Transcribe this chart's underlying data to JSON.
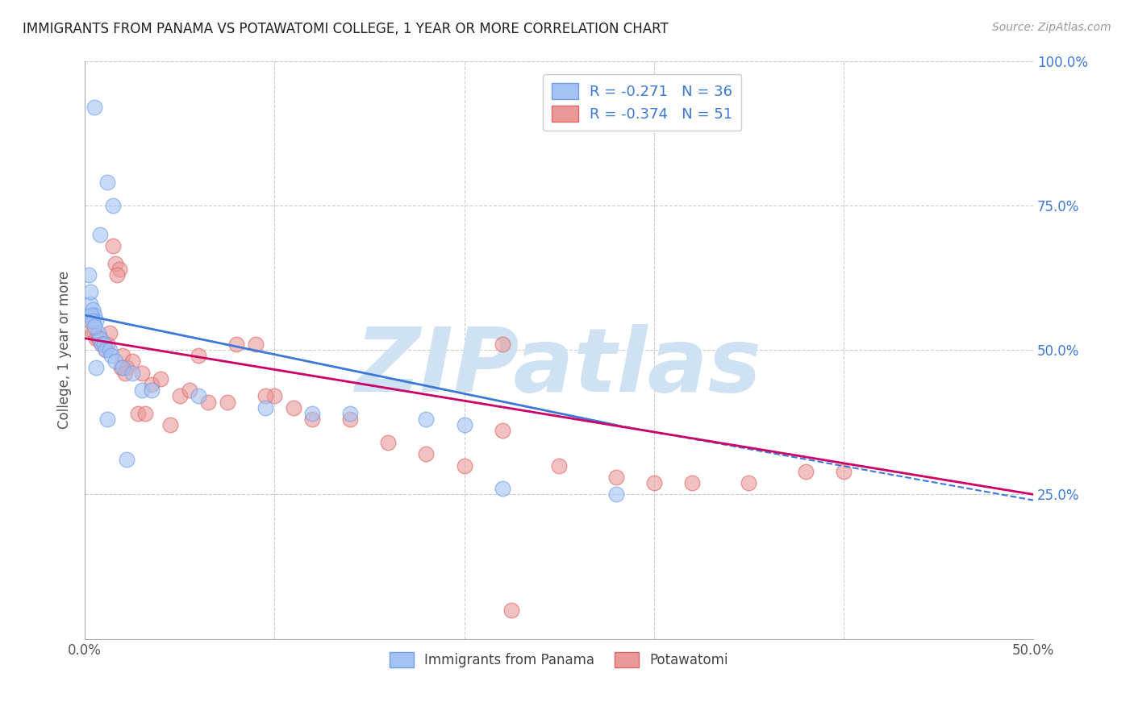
{
  "title": "IMMIGRANTS FROM PANAMA VS POTAWATOMI COLLEGE, 1 YEAR OR MORE CORRELATION CHART",
  "source": "Source: ZipAtlas.com",
  "ylabel": "College, 1 year or more",
  "xlim": [
    0,
    50
  ],
  "ylim": [
    0,
    100
  ],
  "yticks": [
    0,
    25,
    50,
    75,
    100
  ],
  "xticks": [
    0,
    10,
    20,
    30,
    40,
    50
  ],
  "legend_blue_r": "R = -0.271",
  "legend_blue_n": "N = 36",
  "legend_pink_r": "R = -0.374",
  "legend_pink_n": "N = 51",
  "blue_color": "#a4c2f4",
  "pink_color": "#ea9999",
  "blue_edge_color": "#6d9eeb",
  "pink_edge_color": "#e06666",
  "blue_line_color": "#3c78d8",
  "pink_line_color": "#cc0066",
  "right_axis_color": "#3c78d8",
  "watermark": "ZIPatlas",
  "watermark_color": "#cfe2f3",
  "grid_color": "#cccccc",
  "blue_points_x": [
    0.5,
    1.2,
    1.5,
    0.8,
    0.3,
    0.4,
    0.5,
    0.6,
    0.7,
    0.8,
    0.9,
    1.0,
    1.1,
    1.3,
    1.4,
    1.6,
    2.0,
    2.5,
    3.0,
    3.5,
    6.0,
    9.5,
    12.0,
    14.0,
    20.0,
    22.0,
    0.2,
    0.3,
    0.35,
    0.4,
    0.5,
    0.6,
    1.2,
    2.2,
    18.0,
    28.0
  ],
  "blue_points_y": [
    92,
    79,
    75,
    70,
    58,
    57,
    56,
    55,
    53,
    52,
    51,
    51,
    50,
    50,
    49,
    48,
    47,
    46,
    43,
    43,
    42,
    40,
    39,
    39,
    37,
    26,
    63,
    60,
    56,
    55,
    54,
    47,
    38,
    31,
    38,
    25
  ],
  "pink_points_x": [
    0.3,
    0.5,
    0.8,
    1.0,
    1.2,
    1.5,
    1.6,
    1.8,
    2.0,
    2.2,
    2.5,
    3.0,
    3.5,
    4.0,
    5.0,
    6.0,
    8.0,
    9.0,
    10.0,
    12.0,
    14.0,
    16.0,
    18.0,
    20.0,
    22.0,
    25.0,
    28.0,
    30.0,
    35.0,
    40.0,
    0.4,
    0.6,
    0.7,
    0.9,
    1.1,
    1.3,
    1.7,
    1.9,
    2.1,
    2.8,
    3.2,
    4.5,
    5.5,
    6.5,
    7.5,
    9.5,
    11.0,
    22.0,
    32.0,
    38.0,
    22.5
  ],
  "pink_points_y": [
    55,
    53,
    52,
    51,
    51,
    68,
    65,
    64,
    49,
    47,
    48,
    46,
    44,
    45,
    42,
    49,
    51,
    51,
    42,
    38,
    38,
    34,
    32,
    30,
    36,
    30,
    28,
    27,
    27,
    29,
    53,
    52,
    52,
    51,
    50,
    53,
    63,
    47,
    46,
    39,
    39,
    37,
    43,
    41,
    41,
    42,
    40,
    51,
    27,
    29,
    5
  ],
  "blue_reg_x0": 0,
  "blue_reg_x1": 28,
  "blue_reg_x2": 50,
  "blue_reg_y0": 56,
  "blue_reg_y1": 37,
  "blue_reg_y2": 24,
  "pink_reg_x0": 0,
  "pink_reg_x1": 50,
  "pink_reg_y0": 52,
  "pink_reg_y1": 25
}
